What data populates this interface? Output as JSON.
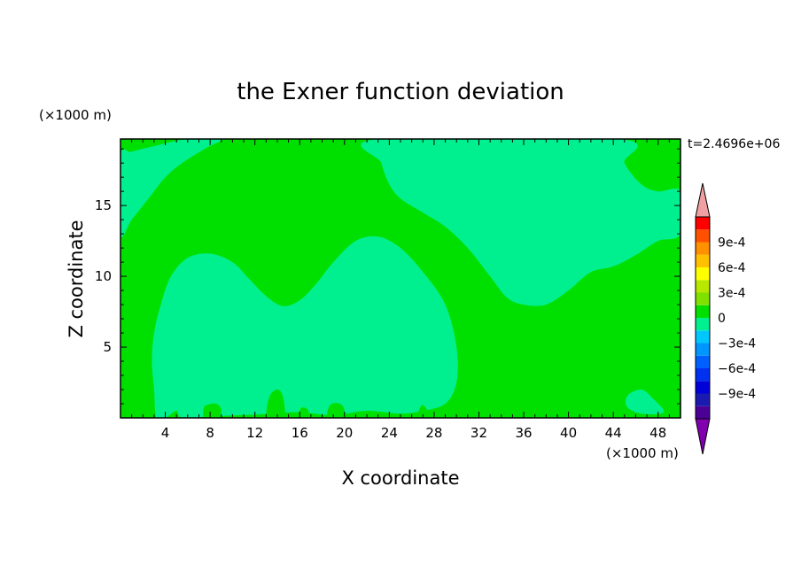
{
  "chart_data": {
    "type": "heatmap",
    "title": "the Exner function deviation",
    "time_label": "t=2.4696e+06",
    "xlabel": "X coordinate",
    "ylabel": "Z coordinate",
    "x_unit": "(×1000 m)",
    "y_unit": "(×1000 m)",
    "xlim": [
      0,
      50
    ],
    "ylim": [
      0,
      19.7
    ],
    "x_ticks": [
      "4",
      "8",
      "12",
      "16",
      "20",
      "24",
      "28",
      "32",
      "36",
      "40",
      "44",
      "48"
    ],
    "y_ticks": [
      "5",
      "10",
      "15"
    ],
    "colorbar": {
      "levels": [
        -0.0012,
        -0.00105,
        -0.0009,
        -0.00075,
        -0.0006,
        -0.00045,
        -0.0003,
        -0.00015,
        0,
        0.00015,
        0.0003,
        0.00045,
        0.0006,
        0.00075,
        0.0009,
        0.00105,
        0.0012
      ],
      "colors": [
        "#4b0096",
        "#1a1ab0",
        "#0000d8",
        "#0030f0",
        "#0060ff",
        "#0096ff",
        "#00c8ff",
        "#00f090",
        "#00e000",
        "#80e000",
        "#b8e800",
        "#ffff00",
        "#ffc000",
        "#ff9000",
        "#ff5000",
        "#ff0000"
      ],
      "under_color": "#8000b0",
      "over_color": "#f0a0a0",
      "tick_labels": [
        "9e-4",
        "6e-4",
        "3e-4",
        "0",
        "−3e-4",
        "−6e-4",
        "−9e-4"
      ]
    },
    "regions": [
      {
        "sign": "positive",
        "color": "#00e000",
        "description_level": "0 to 1.5e-4",
        "is_background": true
      },
      {
        "sign": "negative",
        "color": "#00f090",
        "description_level": "-1.5e-4 to 0",
        "polygons": [
          [
            [
              0,
              13
            ],
            [
              0,
              18.5
            ],
            [
              1,
              18.8
            ],
            [
              3,
              19.2
            ],
            [
              6,
              19.7
            ],
            [
              9,
              19.7
            ],
            [
              7.5,
              19
            ],
            [
              5.5,
              18
            ],
            [
              4,
              17
            ],
            [
              2.5,
              15.5
            ],
            [
              1,
              14
            ]
          ],
          [
            [
              23,
              19.7
            ],
            [
              23.3,
              18
            ],
            [
              24,
              16.5
            ],
            [
              25,
              15.5
            ],
            [
              27,
              14.5
            ],
            [
              29,
              13.5
            ],
            [
              31,
              12
            ],
            [
              33,
              10
            ],
            [
              34.5,
              8.5
            ],
            [
              36,
              8
            ],
            [
              38,
              8
            ],
            [
              40,
              9
            ],
            [
              42,
              10.3
            ],
            [
              44,
              10.7
            ],
            [
              46,
              11.5
            ],
            [
              48,
              12.5
            ],
            [
              50,
              13
            ],
            [
              50,
              16
            ],
            [
              48,
              16
            ],
            [
              46.5,
              16.5
            ],
            [
              45,
              18
            ],
            [
              44.5,
              19.7
            ]
          ],
          [
            [
              3.2,
              0
            ],
            [
              3,
              2
            ],
            [
              2.8,
              4
            ],
            [
              3,
              6
            ],
            [
              3.6,
              8
            ],
            [
              4.5,
              10
            ],
            [
              6,
              11.3
            ],
            [
              8,
              11.6
            ],
            [
              10,
              11
            ],
            [
              11.5,
              9.8
            ],
            [
              13,
              8.6
            ],
            [
              14.5,
              7.9
            ],
            [
              16,
              8.3
            ],
            [
              17.5,
              9.5
            ],
            [
              19,
              11
            ],
            [
              21,
              12.5
            ],
            [
              23,
              12.8
            ],
            [
              25,
              12
            ],
            [
              27,
              10.3
            ],
            [
              29,
              8
            ],
            [
              30,
              5
            ],
            [
              30,
              2.5
            ],
            [
              29,
              1
            ],
            [
              27,
              0.5
            ],
            [
              25,
              0.3
            ],
            [
              22,
              0.5
            ],
            [
              19,
              0.2
            ],
            [
              16,
              0.4
            ],
            [
              13.5,
              0.3
            ],
            [
              11,
              0.2
            ],
            [
              8,
              0.1
            ],
            [
              5.5,
              0
            ],
            [
              5,
              0.5
            ],
            [
              4,
              0
            ]
          ],
          [
            [
              45.3,
              1.6
            ],
            [
              46.5,
              2
            ],
            [
              47.5,
              1.4
            ],
            [
              48.5,
              0.4
            ],
            [
              46.5,
              0.3
            ],
            [
              45.2,
              0.8
            ]
          ]
        ]
      },
      {
        "sign": "positive",
        "color": "#00e000",
        "description_level": "0 to 1.5e-4",
        "polygons": [
          [
            [
              13.1,
              0
            ],
            [
              13.3,
              1.5
            ],
            [
              14,
              2
            ],
            [
              14.5,
              1.5
            ],
            [
              14.6,
              0
            ]
          ],
          [
            [
              7.5,
              0
            ],
            [
              7.5,
              0.8
            ],
            [
              8.5,
              1
            ],
            [
              9,
              0.6
            ],
            [
              8.7,
              0
            ]
          ],
          [
            [
              18.5,
              0
            ],
            [
              18.7,
              0.9
            ],
            [
              19.6,
              1
            ],
            [
              20,
              0.5
            ],
            [
              19.6,
              0
            ]
          ],
          [
            [
              16,
              0
            ],
            [
              16.1,
              0.7
            ],
            [
              16.7,
              0.6
            ],
            [
              16.8,
              0
            ]
          ],
          [
            [
              26.5,
              0
            ],
            [
              26.9,
              0.9
            ],
            [
              27.4,
              0.5
            ],
            [
              27.3,
              0
            ]
          ]
        ]
      }
    ]
  }
}
